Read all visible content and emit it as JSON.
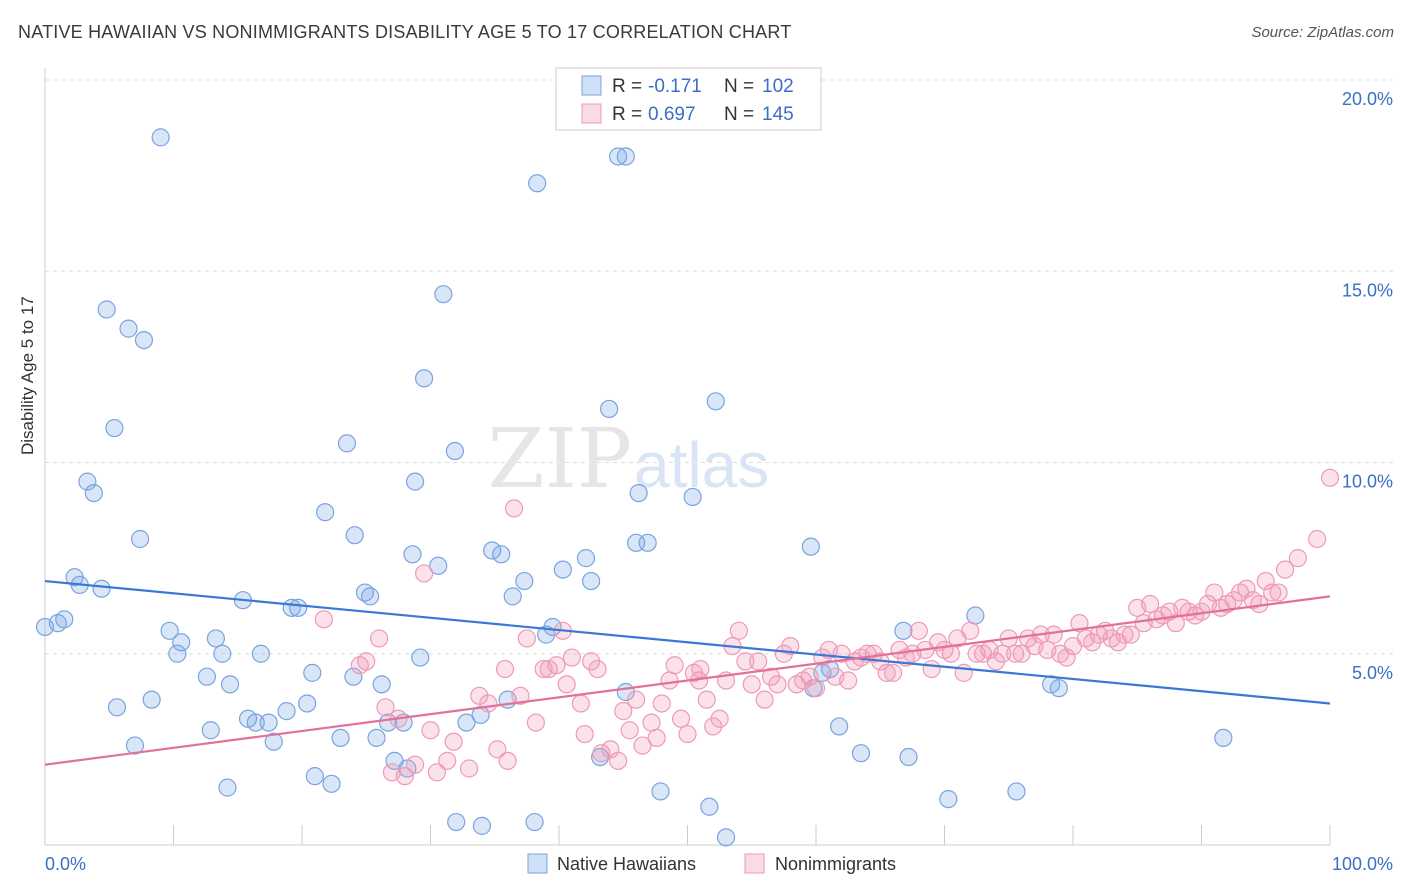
{
  "header": {
    "title": "NATIVE HAWAIIAN VS NONIMMIGRANTS DISABILITY AGE 5 TO 17 CORRELATION CHART",
    "source": "Source: ZipAtlas.com"
  },
  "watermark": {
    "zip": "ZIP",
    "atlas": "atlas"
  },
  "legend_top": [
    {
      "r_label": "R = ",
      "r_value": "-0.171",
      "n_label": "N = ",
      "n_value": "102"
    },
    {
      "r_label": "R = ",
      "r_value": "0.697",
      "n_label": "N = ",
      "n_value": "145"
    }
  ],
  "legend_bottom": [
    "Native Hawaiians",
    "Nonimmigrants"
  ],
  "colors": {
    "blue_fill": "rgba(120,165,230,0.28)",
    "blue_stroke": "#7aa3e0",
    "blue_line": "#3a78d4",
    "pink_fill": "rgba(240,150,180,0.28)",
    "pink_stroke": "#ef9ab5",
    "pink_line": "#e3709a",
    "tick_text": "#3a6fc4"
  },
  "chart_data": {
    "type": "scatter",
    "title": "NATIVE HAWAIIAN VS NONIMMIGRANTS DISABILITY AGE 5 TO 17 CORRELATION CHART",
    "xlabel": "",
    "ylabel": "Disability Age 5 to 17",
    "xlim": [
      0,
      100
    ],
    "ylim": [
      0,
      20
    ],
    "x_ticks": [
      "0.0%",
      "100.0%"
    ],
    "y_ticks": [
      "5.0%",
      "10.0%",
      "15.0%",
      "20.0%"
    ],
    "grid": true,
    "legend_position": "top-center",
    "series": [
      {
        "name": "Native Hawaiians",
        "r": -0.171,
        "n": 102,
        "trend": {
          "x": [
            0,
            100
          ],
          "y": [
            6.9,
            3.7
          ]
        },
        "points": [
          [
            0,
            5.7
          ],
          [
            1,
            5.8
          ],
          [
            1.5,
            5.9
          ],
          [
            2.3,
            7.0
          ],
          [
            2.7,
            6.8
          ],
          [
            3.3,
            9.5
          ],
          [
            3.8,
            9.2
          ],
          [
            4.4,
            6.7
          ],
          [
            4.8,
            14.0
          ],
          [
            5.4,
            10.9
          ],
          [
            5.6,
            3.6
          ],
          [
            6.5,
            13.5
          ],
          [
            7.0,
            2.6
          ],
          [
            7.4,
            8.0
          ],
          [
            7.7,
            13.2
          ],
          [
            8.3,
            3.8
          ],
          [
            9.0,
            18.5
          ],
          [
            9.7,
            5.6
          ],
          [
            10.3,
            5.0
          ],
          [
            10.6,
            5.3
          ],
          [
            12.6,
            4.4
          ],
          [
            12.9,
            3.0
          ],
          [
            13.3,
            5.4
          ],
          [
            13.8,
            5.0
          ],
          [
            14.2,
            1.5
          ],
          [
            14.4,
            4.2
          ],
          [
            15.4,
            6.4
          ],
          [
            15.8,
            3.3
          ],
          [
            16.4,
            3.2
          ],
          [
            16.8,
            5.0
          ],
          [
            17.4,
            3.2
          ],
          [
            17.8,
            2.7
          ],
          [
            18.8,
            3.5
          ],
          [
            19.2,
            6.2
          ],
          [
            19.7,
            6.2
          ],
          [
            20.4,
            3.7
          ],
          [
            20.8,
            4.5
          ],
          [
            21.0,
            1.8
          ],
          [
            21.8,
            8.7
          ],
          [
            22.3,
            1.6
          ],
          [
            23.0,
            2.8
          ],
          [
            23.5,
            10.5
          ],
          [
            24.0,
            4.4
          ],
          [
            24.1,
            8.1
          ],
          [
            24.9,
            6.6
          ],
          [
            25.3,
            6.5
          ],
          [
            25.8,
            2.8
          ],
          [
            26.2,
            4.2
          ],
          [
            26.7,
            3.2
          ],
          [
            27.2,
            2.2
          ],
          [
            27.9,
            3.2
          ],
          [
            28.2,
            2.0
          ],
          [
            28.8,
            9.5
          ],
          [
            28.6,
            7.6
          ],
          [
            29.2,
            4.9
          ],
          [
            29.5,
            12.2
          ],
          [
            30.6,
            7.3
          ],
          [
            31.0,
            14.4
          ],
          [
            32.0,
            0.6
          ],
          [
            31.9,
            10.3
          ],
          [
            32.8,
            3.2
          ],
          [
            33.9,
            3.4
          ],
          [
            34.0,
            0.5
          ],
          [
            34.8,
            7.7
          ],
          [
            35.5,
            7.6
          ],
          [
            36.0,
            3.8
          ],
          [
            36.4,
            6.5
          ],
          [
            37.3,
            6.9
          ],
          [
            38.3,
            17.3
          ],
          [
            38.1,
            0.6
          ],
          [
            39.0,
            5.5
          ],
          [
            39.5,
            5.7
          ],
          [
            40.3,
            7.2
          ],
          [
            42.1,
            7.5
          ],
          [
            42.5,
            6.9
          ],
          [
            43.2,
            2.3
          ],
          [
            43.9,
            11.4
          ],
          [
            44.6,
            18.0
          ],
          [
            45.2,
            18.0
          ],
          [
            45.2,
            4.0
          ],
          [
            46.2,
            9.2
          ],
          [
            46.0,
            7.9
          ],
          [
            46.9,
            7.9
          ],
          [
            47.9,
            1.4
          ],
          [
            50.4,
            9.1
          ],
          [
            51.7,
            1.0
          ],
          [
            52.2,
            11.6
          ],
          [
            53.0,
            0.2
          ],
          [
            59.6,
            7.8
          ],
          [
            59.8,
            4.1
          ],
          [
            60.5,
            4.5
          ],
          [
            61.1,
            4.6
          ],
          [
            61.8,
            3.1
          ],
          [
            63.5,
            2.4
          ],
          [
            66.8,
            5.6
          ],
          [
            67.2,
            2.3
          ],
          [
            70.3,
            1.2
          ],
          [
            72.4,
            6.0
          ],
          [
            75.6,
            1.4
          ],
          [
            78.3,
            4.2
          ],
          [
            78.9,
            4.1
          ],
          [
            91.7,
            2.8
          ]
        ]
      },
      {
        "name": "Nonimmigrants",
        "r": 0.697,
        "n": 145,
        "trend": {
          "x": [
            0,
            100
          ],
          "y": [
            2.1,
            6.5
          ]
        },
        "points": [
          [
            21.7,
            5.9
          ],
          [
            24.5,
            4.7
          ],
          [
            25.0,
            4.8
          ],
          [
            26.0,
            5.4
          ],
          [
            26.5,
            3.6
          ],
          [
            27.0,
            1.9
          ],
          [
            27.5,
            3.3
          ],
          [
            28.0,
            1.8
          ],
          [
            28.8,
            2.1
          ],
          [
            29.5,
            7.1
          ],
          [
            30.0,
            3.0
          ],
          [
            30.5,
            1.9
          ],
          [
            31.3,
            2.2
          ],
          [
            31.8,
            2.7
          ],
          [
            33.0,
            2.0
          ],
          [
            33.8,
            3.9
          ],
          [
            34.5,
            3.7
          ],
          [
            35.2,
            2.5
          ],
          [
            35.8,
            4.6
          ],
          [
            36.0,
            2.2
          ],
          [
            36.5,
            8.8
          ],
          [
            37.0,
            3.9
          ],
          [
            37.5,
            5.4
          ],
          [
            38.2,
            3.2
          ],
          [
            38.8,
            4.6
          ],
          [
            39.2,
            4.6
          ],
          [
            39.8,
            4.7
          ],
          [
            40.3,
            5.6
          ],
          [
            40.6,
            4.2
          ],
          [
            41.0,
            4.9
          ],
          [
            41.7,
            3.7
          ],
          [
            42.0,
            2.9
          ],
          [
            42.5,
            4.8
          ],
          [
            43.0,
            4.6
          ],
          [
            43.3,
            2.4
          ],
          [
            44.0,
            2.5
          ],
          [
            44.6,
            2.2
          ],
          [
            45.0,
            3.5
          ],
          [
            45.5,
            3.0
          ],
          [
            46.0,
            3.8
          ],
          [
            46.5,
            2.6
          ],
          [
            47.2,
            3.2
          ],
          [
            47.6,
            2.8
          ],
          [
            48.0,
            3.7
          ],
          [
            48.6,
            4.3
          ],
          [
            49.0,
            4.7
          ],
          [
            49.5,
            3.3
          ],
          [
            50.0,
            2.9
          ],
          [
            50.5,
            4.5
          ],
          [
            50.9,
            4.3
          ],
          [
            51.0,
            4.6
          ],
          [
            51.5,
            3.8
          ],
          [
            52.0,
            3.1
          ],
          [
            52.5,
            3.3
          ],
          [
            53.0,
            4.3
          ],
          [
            53.5,
            5.2
          ],
          [
            54.0,
            5.6
          ],
          [
            54.5,
            4.8
          ],
          [
            55.0,
            4.2
          ],
          [
            55.5,
            4.8
          ],
          [
            56.0,
            3.8
          ],
          [
            56.5,
            4.4
          ],
          [
            57.0,
            4.2
          ],
          [
            57.5,
            5.0
          ],
          [
            58.0,
            5.2
          ],
          [
            58.5,
            4.2
          ],
          [
            59.0,
            4.3
          ],
          [
            59.5,
            4.4
          ],
          [
            60.0,
            4.1
          ],
          [
            60.5,
            4.9
          ],
          [
            61.0,
            5.1
          ],
          [
            61.5,
            4.4
          ],
          [
            62.0,
            5.0
          ],
          [
            62.5,
            4.3
          ],
          [
            63.0,
            4.8
          ],
          [
            63.5,
            4.9
          ],
          [
            64.0,
            5.0
          ],
          [
            64.5,
            5.0
          ],
          [
            65.0,
            4.8
          ],
          [
            65.5,
            4.5
          ],
          [
            66.0,
            4.5
          ],
          [
            66.5,
            5.1
          ],
          [
            67.0,
            4.9
          ],
          [
            67.5,
            5.0
          ],
          [
            68.0,
            5.6
          ],
          [
            68.5,
            5.1
          ],
          [
            69.0,
            4.6
          ],
          [
            69.5,
            5.3
          ],
          [
            70.0,
            5.1
          ],
          [
            70.5,
            5.0
          ],
          [
            71.0,
            5.4
          ],
          [
            71.5,
            4.5
          ],
          [
            72.0,
            5.6
          ],
          [
            72.5,
            5.0
          ],
          [
            73.0,
            5.0
          ],
          [
            73.5,
            5.1
          ],
          [
            74.0,
            4.8
          ],
          [
            74.5,
            5.0
          ],
          [
            75.0,
            5.4
          ],
          [
            75.5,
            5.0
          ],
          [
            76.0,
            5.0
          ],
          [
            76.5,
            5.4
          ],
          [
            77.0,
            5.2
          ],
          [
            77.5,
            5.5
          ],
          [
            78.0,
            5.1
          ],
          [
            78.5,
            5.5
          ],
          [
            79.0,
            5.0
          ],
          [
            79.5,
            4.9
          ],
          [
            80.0,
            5.2
          ],
          [
            80.5,
            5.8
          ],
          [
            81.0,
            5.4
          ],
          [
            81.5,
            5.3
          ],
          [
            82.0,
            5.5
          ],
          [
            82.5,
            5.6
          ],
          [
            83.0,
            5.4
          ],
          [
            83.5,
            5.3
          ],
          [
            84.0,
            5.5
          ],
          [
            84.5,
            5.5
          ],
          [
            85.0,
            6.2
          ],
          [
            85.5,
            5.8
          ],
          [
            86.0,
            6.3
          ],
          [
            86.5,
            5.9
          ],
          [
            87.0,
            6.0
          ],
          [
            87.5,
            6.1
          ],
          [
            88.0,
            5.8
          ],
          [
            88.5,
            6.2
          ],
          [
            89.0,
            6.1
          ],
          [
            89.5,
            6.0
          ],
          [
            90.0,
            6.1
          ],
          [
            90.5,
            6.3
          ],
          [
            91.0,
            6.6
          ],
          [
            91.5,
            6.2
          ],
          [
            92.0,
            6.3
          ],
          [
            92.5,
            6.4
          ],
          [
            93.0,
            6.6
          ],
          [
            93.5,
            6.7
          ],
          [
            94.0,
            6.4
          ],
          [
            94.5,
            6.3
          ],
          [
            95.0,
            6.9
          ],
          [
            95.5,
            6.6
          ],
          [
            96.0,
            6.6
          ],
          [
            96.5,
            7.2
          ],
          [
            97.5,
            7.5
          ],
          [
            99.0,
            8.0
          ],
          [
            100,
            9.6
          ]
        ]
      }
    ]
  }
}
